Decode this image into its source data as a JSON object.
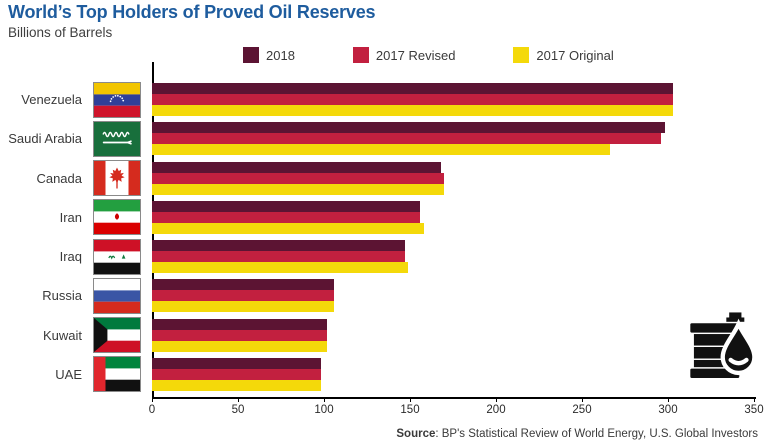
{
  "header": {
    "title": "World’s Top Holders of Proved Oil Reserves",
    "subtitle": "Billions of Barrels"
  },
  "legend": {
    "items": [
      {
        "label": "2018",
        "color": "#5c1433"
      },
      {
        "label": "2017 Revised",
        "color": "#c2203f"
      },
      {
        "label": "2017 Original",
        "color": "#f4d90a"
      }
    ]
  },
  "chart_data": {
    "type": "bar",
    "orientation": "horizontal",
    "title": "World's Top Holders of Proved Oil Reserves",
    "xlabel": "Billions of Barrels",
    "categories": [
      "Venezuela",
      "Saudi Arabia",
      "Canada",
      "Iran",
      "Iraq",
      "Russia",
      "Kuwait",
      "UAE"
    ],
    "series": [
      {
        "name": "2018",
        "color": "#5c1433",
        "values": [
          303,
          298,
          168,
          156,
          147,
          106,
          102,
          98
        ]
      },
      {
        "name": "2017 Revised",
        "color": "#c2203f",
        "values": [
          303,
          296,
          170,
          156,
          147,
          106,
          102,
          98
        ]
      },
      {
        "name": "2017 Original",
        "color": "#f4d90a",
        "values": [
          303,
          266,
          170,
          158,
          149,
          106,
          102,
          98
        ]
      }
    ],
    "xlim": [
      0,
      350
    ],
    "xticks": [
      0,
      50,
      100,
      150,
      200,
      250,
      300,
      350
    ],
    "grid": false,
    "legend_position": "top"
  },
  "icons": {
    "barrel": "oil-barrel-icon",
    "flags": [
      "flag-venezuela",
      "flag-saudi-arabia",
      "flag-canada",
      "flag-iran",
      "flag-iraq",
      "flag-russia",
      "flag-kuwait",
      "flag-uae"
    ]
  },
  "source": {
    "label": "Source",
    "text": ": BP's Statistical Review of World Energy, U.S. Global Investors"
  }
}
